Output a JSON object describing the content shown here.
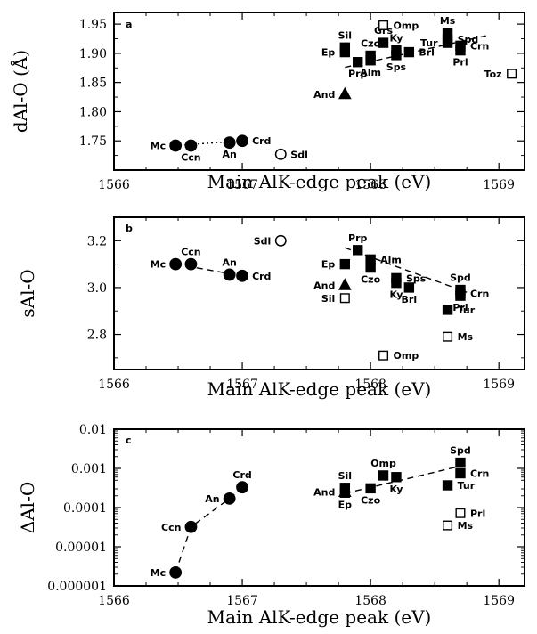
{
  "chart_data": [
    {
      "type": "scatter",
      "panel_label": "a",
      "xlabel": "Main AlK-edge peak (eV)",
      "ylabel": "dAl-O (Å)",
      "xlim": [
        1566,
        1569.2
      ],
      "ylim": [
        1.7,
        1.97
      ],
      "xticks": [
        1566,
        1567,
        1568,
        1569
      ],
      "xtick_labels": [
        "1566",
        "1567",
        "1568",
        "1569"
      ],
      "yticks": [
        1.75,
        1.8,
        1.85,
        1.9,
        1.95
      ],
      "ytick_labels": [
        "1.75",
        "1.80",
        "1.85",
        "1.90",
        "1.95"
      ],
      "points": [
        {
          "label": "Mc",
          "x": 1566.48,
          "y": 1.742,
          "marker": "filled-circle"
        },
        {
          "label": "Ccn",
          "x": 1566.6,
          "y": 1.742,
          "marker": "filled-circle"
        },
        {
          "label": "An",
          "x": 1566.9,
          "y": 1.747,
          "marker": "filled-circle"
        },
        {
          "label": "Crd",
          "x": 1567.0,
          "y": 1.75,
          "marker": "filled-circle"
        },
        {
          "label": "Sdl",
          "x": 1567.3,
          "y": 1.727,
          "marker": "open-circle"
        },
        {
          "label": "And",
          "x": 1567.8,
          "y": 1.83,
          "marker": "filled-triangle"
        },
        {
          "label": "Ep",
          "x": 1567.8,
          "y": 1.902,
          "marker": "filled-square"
        },
        {
          "label": "Sil",
          "x": 1567.8,
          "y": 1.91,
          "marker": "filled-square"
        },
        {
          "label": "Prp",
          "x": 1567.9,
          "y": 1.885,
          "marker": "filled-square"
        },
        {
          "label": "Alm",
          "x": 1568.0,
          "y": 1.888,
          "marker": "filled-square"
        },
        {
          "label": "Czo",
          "x": 1568.0,
          "y": 1.896,
          "marker": "filled-square"
        },
        {
          "label": "Grs",
          "x": 1568.1,
          "y": 1.918,
          "marker": "filled-square"
        },
        {
          "label": "Omp",
          "x": 1568.1,
          "y": 1.948,
          "marker": "open-square"
        },
        {
          "label": "Ky",
          "x": 1568.2,
          "y": 1.905,
          "marker": "filled-square"
        },
        {
          "label": "Sps",
          "x": 1568.2,
          "y": 1.897,
          "marker": "filled-square"
        },
        {
          "label": "Brl",
          "x": 1568.3,
          "y": 1.902,
          "marker": "filled-square"
        },
        {
          "label": "Ms",
          "x": 1568.6,
          "y": 1.935,
          "marker": "filled-square"
        },
        {
          "label": "Spd",
          "x": 1568.6,
          "y": 1.924,
          "marker": "filled-square"
        },
        {
          "label": "Tur",
          "x": 1568.6,
          "y": 1.918,
          "marker": "filled-square"
        },
        {
          "label": "Crn",
          "x": 1568.7,
          "y": 1.913,
          "marker": "filled-square"
        },
        {
          "label": "Prl",
          "x": 1568.7,
          "y": 1.905,
          "marker": "filled-square"
        },
        {
          "label": "Toz",
          "x": 1569.1,
          "y": 1.865,
          "marker": "open-square"
        }
      ],
      "trend_lines": [
        {
          "x": [
            1566.48,
            1567.0
          ],
          "y": [
            1.742,
            1.75
          ],
          "style": "dotted"
        },
        {
          "x": [
            1567.8,
            1568.9
          ],
          "y": [
            1.876,
            1.93
          ],
          "style": "dashed"
        }
      ]
    },
    {
      "type": "scatter",
      "panel_label": "b",
      "xlabel": "Main AlK-edge peak (eV)",
      "ylabel": "sAl-O",
      "xlim": [
        1566,
        1569.2
      ],
      "ylim": [
        2.65,
        3.3
      ],
      "xticks": [
        1566,
        1567,
        1568,
        1569
      ],
      "xtick_labels": [
        "1566",
        "1567",
        "1568",
        "1569"
      ],
      "yticks": [
        2.8,
        3.0,
        3.2
      ],
      "ytick_labels": [
        "2.8",
        "3.0",
        "3.2"
      ],
      "points": [
        {
          "label": "Mc",
          "x": 1566.48,
          "y": 3.1,
          "marker": "filled-circle"
        },
        {
          "label": "Ccn",
          "x": 1566.6,
          "y": 3.1,
          "marker": "filled-circle"
        },
        {
          "label": "An",
          "x": 1566.9,
          "y": 3.055,
          "marker": "filled-circle"
        },
        {
          "label": "Crd",
          "x": 1567.0,
          "y": 3.05,
          "marker": "filled-circle"
        },
        {
          "label": "Sdl",
          "x": 1567.3,
          "y": 3.2,
          "marker": "open-circle"
        },
        {
          "label": "Ep",
          "x": 1567.8,
          "y": 3.1,
          "marker": "filled-square"
        },
        {
          "label": "And",
          "x": 1567.8,
          "y": 3.01,
          "marker": "filled-triangle"
        },
        {
          "label": "Sil",
          "x": 1567.8,
          "y": 2.955,
          "marker": "open-square"
        },
        {
          "label": "Prp",
          "x": 1567.9,
          "y": 3.16,
          "marker": "filled-square"
        },
        {
          "label": "Alm",
          "x": 1568.0,
          "y": 3.12,
          "marker": "filled-square"
        },
        {
          "label": "Czo",
          "x": 1568.0,
          "y": 3.085,
          "marker": "filled-square"
        },
        {
          "label": "Sps",
          "x": 1568.2,
          "y": 3.04,
          "marker": "filled-square"
        },
        {
          "label": "Ky",
          "x": 1568.2,
          "y": 3.02,
          "marker": "filled-square"
        },
        {
          "label": "Brl",
          "x": 1568.3,
          "y": 3.0,
          "marker": "filled-square"
        },
        {
          "label": "Omp",
          "x": 1568.1,
          "y": 2.71,
          "marker": "open-square"
        },
        {
          "label": "Spd",
          "x": 1568.7,
          "y": 2.99,
          "marker": "filled-square"
        },
        {
          "label": "Crn",
          "x": 1568.7,
          "y": 2.975,
          "marker": "filled-square"
        },
        {
          "label": "Prl",
          "x": 1568.7,
          "y": 2.965,
          "marker": "filled-square"
        },
        {
          "label": "Tur",
          "x": 1568.6,
          "y": 2.905,
          "marker": "filled-square"
        },
        {
          "label": "Ms",
          "x": 1568.6,
          "y": 2.79,
          "marker": "open-square"
        }
      ],
      "trend_lines": [
        {
          "x": [
            1566.48,
            1567.0
          ],
          "y": [
            3.1,
            3.05
          ],
          "style": "dashed"
        },
        {
          "x": [
            1567.8,
            1568.75
          ],
          "y": [
            3.17,
            2.98
          ],
          "style": "dashed"
        }
      ]
    },
    {
      "type": "scatter",
      "panel_label": "c",
      "xlabel": "Main AlK-edge peak (eV)",
      "ylabel": "ΔAl-O",
      "xlim": [
        1566,
        1569.2
      ],
      "yscale": "log",
      "ylim": [
        1e-06,
        0.01
      ],
      "xticks": [
        1566,
        1567,
        1568,
        1569
      ],
      "xtick_labels": [
        "1566",
        "1567",
        "1568",
        "1569"
      ],
      "yticks": [
        1e-06,
        1e-05,
        0.0001,
        0.001,
        0.01
      ],
      "ytick_labels": [
        "0.000001",
        "0.00001",
        "0.0001",
        "0.001",
        "0.01"
      ],
      "points": [
        {
          "label": "Mc",
          "x": 1566.48,
          "y": 2.2e-06,
          "marker": "filled-circle"
        },
        {
          "label": "Ccn",
          "x": 1566.6,
          "y": 3.2e-05,
          "marker": "filled-circle"
        },
        {
          "label": "An",
          "x": 1566.9,
          "y": 0.00017,
          "marker": "filled-circle"
        },
        {
          "label": "Crd",
          "x": 1567.0,
          "y": 0.00033,
          "marker": "filled-circle"
        },
        {
          "label": "And",
          "x": 1567.8,
          "y": 0.00025,
          "marker": "filled-triangle"
        },
        {
          "label": "Sil",
          "x": 1567.8,
          "y": 0.00032,
          "marker": "filled-square"
        },
        {
          "label": "Ep",
          "x": 1567.8,
          "y": 0.00024,
          "marker": "filled-square"
        },
        {
          "label": "Czo",
          "x": 1568.0,
          "y": 0.00031,
          "marker": "filled-square"
        },
        {
          "label": "Omp",
          "x": 1568.1,
          "y": 0.00066,
          "marker": "filled-square"
        },
        {
          "label": "Ky",
          "x": 1568.2,
          "y": 0.0006,
          "marker": "filled-square"
        },
        {
          "label": "Spd",
          "x": 1568.7,
          "y": 0.0014,
          "marker": "filled-square"
        },
        {
          "label": "Crn",
          "x": 1568.7,
          "y": 0.00075,
          "marker": "filled-square"
        },
        {
          "label": "Tur",
          "x": 1568.6,
          "y": 0.00037,
          "marker": "filled-square"
        },
        {
          "label": "Prl",
          "x": 1568.7,
          "y": 7.2e-05,
          "marker": "open-square"
        },
        {
          "label": "Ms",
          "x": 1568.6,
          "y": 3.5e-05,
          "marker": "open-square"
        }
      ],
      "trend_lines": [
        {
          "x": [
            1566.48,
            1566.6,
            1566.9,
            1567.0
          ],
          "y": [
            2.2e-06,
            3.2e-05,
            0.00017,
            0.00033
          ],
          "style": "dashed"
        },
        {
          "x": [
            1567.8,
            1568.75
          ],
          "y": [
            0.00023,
            0.00125
          ],
          "style": "dashed"
        }
      ]
    }
  ]
}
